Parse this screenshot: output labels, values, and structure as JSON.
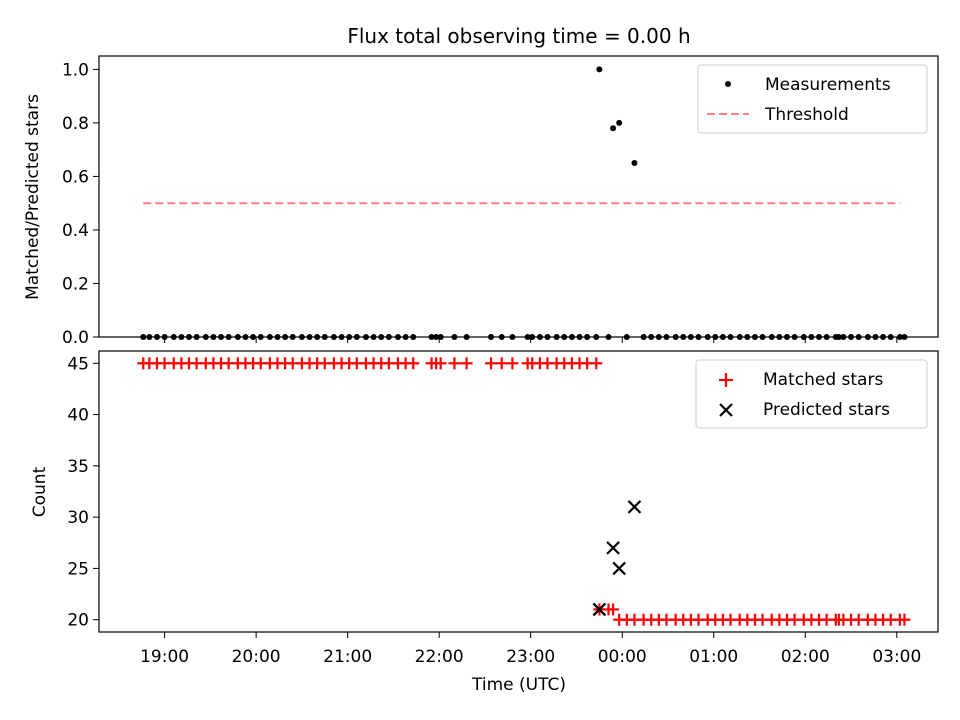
{
  "chart_data": [
    {
      "type": "scatter",
      "title": "Flux total observing time = 0.00 h",
      "xlabel": "",
      "ylabel": "Matched/Predicted stars",
      "xlim": [
        "18:17",
        "03:27"
      ],
      "ylim": [
        0,
        1.05
      ],
      "yticks": [
        "0.0",
        "0.2",
        "0.4",
        "0.6",
        "0.8",
        "1.0"
      ],
      "legend_position": "top-right",
      "series": [
        {
          "name": "Measurements",
          "kind": "points",
          "color": "#000000",
          "points": [
            {
              "x": "18:46",
              "y": 0
            },
            {
              "x": "18:50",
              "y": 0
            },
            {
              "x": "18:55",
              "y": 0
            },
            {
              "x": "19:00",
              "y": 0
            },
            {
              "x": "19:06",
              "y": 0
            },
            {
              "x": "19:11",
              "y": 0
            },
            {
              "x": "19:16",
              "y": 0
            },
            {
              "x": "19:21",
              "y": 0
            },
            {
              "x": "19:27",
              "y": 0
            },
            {
              "x": "19:32",
              "y": 0
            },
            {
              "x": "19:37",
              "y": 0
            },
            {
              "x": "19:42",
              "y": 0
            },
            {
              "x": "19:48",
              "y": 0
            },
            {
              "x": "19:53",
              "y": 0
            },
            {
              "x": "19:58",
              "y": 0
            },
            {
              "x": "20:03",
              "y": 0
            },
            {
              "x": "20:09",
              "y": 0
            },
            {
              "x": "20:14",
              "y": 0
            },
            {
              "x": "20:19",
              "y": 0
            },
            {
              "x": "20:24",
              "y": 0
            },
            {
              "x": "20:30",
              "y": 0
            },
            {
              "x": "20:35",
              "y": 0
            },
            {
              "x": "20:40",
              "y": 0
            },
            {
              "x": "20:45",
              "y": 0
            },
            {
              "x": "20:51",
              "y": 0
            },
            {
              "x": "20:56",
              "y": 0
            },
            {
              "x": "21:01",
              "y": 0
            },
            {
              "x": "21:06",
              "y": 0
            },
            {
              "x": "21:12",
              "y": 0
            },
            {
              "x": "21:17",
              "y": 0
            },
            {
              "x": "21:22",
              "y": 0
            },
            {
              "x": "21:27",
              "y": 0
            },
            {
              "x": "21:33",
              "y": 0
            },
            {
              "x": "21:38",
              "y": 0
            },
            {
              "x": "21:43",
              "y": 0
            },
            {
              "x": "21:55",
              "y": 0
            },
            {
              "x": "21:58",
              "y": 0
            },
            {
              "x": "22:01",
              "y": 0
            },
            {
              "x": "22:10",
              "y": 0
            },
            {
              "x": "22:18",
              "y": 0
            },
            {
              "x": "22:34",
              "y": 0
            },
            {
              "x": "22:41",
              "y": 0
            },
            {
              "x": "22:48",
              "y": 0
            },
            {
              "x": "22:58",
              "y": 0
            },
            {
              "x": "23:01",
              "y": 0
            },
            {
              "x": "23:06",
              "y": 0
            },
            {
              "x": "23:11",
              "y": 0
            },
            {
              "x": "23:17",
              "y": 0
            },
            {
              "x": "23:22",
              "y": 0
            },
            {
              "x": "23:27",
              "y": 0
            },
            {
              "x": "23:32",
              "y": 0
            },
            {
              "x": "23:37",
              "y": 0
            },
            {
              "x": "23:43",
              "y": 0
            },
            {
              "x": "23:45",
              "y": 1.0
            },
            {
              "x": "23:51",
              "y": 0
            },
            {
              "x": "23:54",
              "y": 0.78
            },
            {
              "x": "23:58",
              "y": 0.8
            },
            {
              "x": "00:03",
              "y": 0
            },
            {
              "x": "00:08",
              "y": 0.65
            },
            {
              "x": "00:14",
              "y": 0
            },
            {
              "x": "00:19",
              "y": 0
            },
            {
              "x": "00:24",
              "y": 0
            },
            {
              "x": "00:29",
              "y": 0
            },
            {
              "x": "00:35",
              "y": 0
            },
            {
              "x": "00:40",
              "y": 0
            },
            {
              "x": "00:45",
              "y": 0
            },
            {
              "x": "00:50",
              "y": 0
            },
            {
              "x": "00:56",
              "y": 0
            },
            {
              "x": "01:01",
              "y": 0
            },
            {
              "x": "01:06",
              "y": 0
            },
            {
              "x": "01:11",
              "y": 0
            },
            {
              "x": "01:17",
              "y": 0
            },
            {
              "x": "01:22",
              "y": 0
            },
            {
              "x": "01:27",
              "y": 0
            },
            {
              "x": "01:32",
              "y": 0
            },
            {
              "x": "01:38",
              "y": 0
            },
            {
              "x": "01:43",
              "y": 0
            },
            {
              "x": "01:48",
              "y": 0
            },
            {
              "x": "01:53",
              "y": 0
            },
            {
              "x": "01:59",
              "y": 0
            },
            {
              "x": "02:04",
              "y": 0
            },
            {
              "x": "02:09",
              "y": 0
            },
            {
              "x": "02:14",
              "y": 0
            },
            {
              "x": "02:20",
              "y": 0
            },
            {
              "x": "02:22",
              "y": 0
            },
            {
              "x": "02:25",
              "y": 0
            },
            {
              "x": "02:30",
              "y": 0
            },
            {
              "x": "02:35",
              "y": 0
            },
            {
              "x": "02:41",
              "y": 0
            },
            {
              "x": "02:46",
              "y": 0
            },
            {
              "x": "02:51",
              "y": 0
            },
            {
              "x": "02:56",
              "y": 0
            },
            {
              "x": "03:02",
              "y": 0
            },
            {
              "x": "03:05",
              "y": 0
            }
          ]
        },
        {
          "name": "Threshold",
          "kind": "dashed-line",
          "color": "#ff7f7f",
          "points": [
            {
              "x": "18:46",
              "y": 0.5
            },
            {
              "x": "03:02",
              "y": 0.5
            }
          ]
        }
      ]
    },
    {
      "type": "scatter",
      "title": "",
      "xlabel": "Time (UTC)",
      "ylabel": "Count",
      "xlim": [
        "18:17",
        "03:27"
      ],
      "ylim": [
        18.8,
        46.2
      ],
      "xticks": [
        "19:00",
        "20:00",
        "21:00",
        "22:00",
        "23:00",
        "00:00",
        "01:00",
        "02:00",
        "03:00"
      ],
      "yticks": [
        "20",
        "25",
        "30",
        "35",
        "40",
        "45"
      ],
      "legend_position": "top-right",
      "series": [
        {
          "name": "Matched stars",
          "kind": "plus",
          "color": "#ff0000",
          "points": [
            {
              "x": "18:46",
              "y": 45
            },
            {
              "x": "18:50",
              "y": 45
            },
            {
              "x": "18:55",
              "y": 45
            },
            {
              "x": "19:00",
              "y": 45
            },
            {
              "x": "19:06",
              "y": 45
            },
            {
              "x": "19:11",
              "y": 45
            },
            {
              "x": "19:16",
              "y": 45
            },
            {
              "x": "19:21",
              "y": 45
            },
            {
              "x": "19:27",
              "y": 45
            },
            {
              "x": "19:32",
              "y": 45
            },
            {
              "x": "19:37",
              "y": 45
            },
            {
              "x": "19:42",
              "y": 45
            },
            {
              "x": "19:48",
              "y": 45
            },
            {
              "x": "19:53",
              "y": 45
            },
            {
              "x": "19:58",
              "y": 45
            },
            {
              "x": "20:03",
              "y": 45
            },
            {
              "x": "20:09",
              "y": 45
            },
            {
              "x": "20:14",
              "y": 45
            },
            {
              "x": "20:19",
              "y": 45
            },
            {
              "x": "20:24",
              "y": 45
            },
            {
              "x": "20:30",
              "y": 45
            },
            {
              "x": "20:35",
              "y": 45
            },
            {
              "x": "20:40",
              "y": 45
            },
            {
              "x": "20:45",
              "y": 45
            },
            {
              "x": "20:51",
              "y": 45
            },
            {
              "x": "20:56",
              "y": 45
            },
            {
              "x": "21:01",
              "y": 45
            },
            {
              "x": "21:06",
              "y": 45
            },
            {
              "x": "21:12",
              "y": 45
            },
            {
              "x": "21:17",
              "y": 45
            },
            {
              "x": "21:22",
              "y": 45
            },
            {
              "x": "21:27",
              "y": 45
            },
            {
              "x": "21:33",
              "y": 45
            },
            {
              "x": "21:38",
              "y": 45
            },
            {
              "x": "21:43",
              "y": 45
            },
            {
              "x": "21:55",
              "y": 45
            },
            {
              "x": "21:58",
              "y": 45
            },
            {
              "x": "22:01",
              "y": 45
            },
            {
              "x": "22:10",
              "y": 45
            },
            {
              "x": "22:18",
              "y": 45
            },
            {
              "x": "22:34",
              "y": 45
            },
            {
              "x": "22:41",
              "y": 45
            },
            {
              "x": "22:48",
              "y": 45
            },
            {
              "x": "22:58",
              "y": 45
            },
            {
              "x": "23:01",
              "y": 45
            },
            {
              "x": "23:06",
              "y": 45
            },
            {
              "x": "23:11",
              "y": 45
            },
            {
              "x": "23:17",
              "y": 45
            },
            {
              "x": "23:22",
              "y": 45
            },
            {
              "x": "23:27",
              "y": 45
            },
            {
              "x": "23:32",
              "y": 45
            },
            {
              "x": "23:37",
              "y": 45
            },
            {
              "x": "23:43",
              "y": 45
            },
            {
              "x": "23:45",
              "y": 21
            },
            {
              "x": "23:51",
              "y": 21
            },
            {
              "x": "23:54",
              "y": 21
            },
            {
              "x": "23:58",
              "y": 20
            },
            {
              "x": "00:03",
              "y": 20
            },
            {
              "x": "00:08",
              "y": 20
            },
            {
              "x": "00:14",
              "y": 20
            },
            {
              "x": "00:19",
              "y": 20
            },
            {
              "x": "00:24",
              "y": 20
            },
            {
              "x": "00:29",
              "y": 20
            },
            {
              "x": "00:35",
              "y": 20
            },
            {
              "x": "00:40",
              "y": 20
            },
            {
              "x": "00:45",
              "y": 20
            },
            {
              "x": "00:50",
              "y": 20
            },
            {
              "x": "00:56",
              "y": 20
            },
            {
              "x": "01:01",
              "y": 20
            },
            {
              "x": "01:06",
              "y": 20
            },
            {
              "x": "01:11",
              "y": 20
            },
            {
              "x": "01:17",
              "y": 20
            },
            {
              "x": "01:22",
              "y": 20
            },
            {
              "x": "01:27",
              "y": 20
            },
            {
              "x": "01:32",
              "y": 20
            },
            {
              "x": "01:38",
              "y": 20
            },
            {
              "x": "01:43",
              "y": 20
            },
            {
              "x": "01:48",
              "y": 20
            },
            {
              "x": "01:53",
              "y": 20
            },
            {
              "x": "01:59",
              "y": 20
            },
            {
              "x": "02:04",
              "y": 20
            },
            {
              "x": "02:09",
              "y": 20
            },
            {
              "x": "02:14",
              "y": 20
            },
            {
              "x": "02:20",
              "y": 20
            },
            {
              "x": "02:22",
              "y": 20
            },
            {
              "x": "02:25",
              "y": 20
            },
            {
              "x": "02:30",
              "y": 20
            },
            {
              "x": "02:35",
              "y": 20
            },
            {
              "x": "02:41",
              "y": 20
            },
            {
              "x": "02:46",
              "y": 20
            },
            {
              "x": "02:51",
              "y": 20
            },
            {
              "x": "02:56",
              "y": 20
            },
            {
              "x": "03:02",
              "y": 20
            },
            {
              "x": "03:05",
              "y": 20
            }
          ]
        },
        {
          "name": "Predicted stars",
          "kind": "cross",
          "color": "#000000",
          "points": [
            {
              "x": "23:45",
              "y": 21
            },
            {
              "x": "23:54",
              "y": 27
            },
            {
              "x": "23:58",
              "y": 25
            },
            {
              "x": "00:08",
              "y": 31
            }
          ]
        }
      ]
    }
  ]
}
